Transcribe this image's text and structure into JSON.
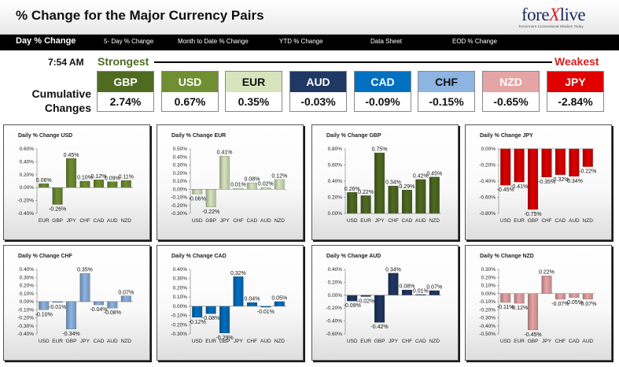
{
  "header": {
    "title": "% Change for the Major Currency Pairs",
    "logo_main": "fore",
    "logo_x": "X",
    "logo_end": "live",
    "logo_tagline": "Tomorrow's Conventional Wisdom Today"
  },
  "nav": [
    {
      "label": "Day % Change"
    },
    {
      "label": "5- Day % Change"
    },
    {
      "label": "Month to Date % Change"
    },
    {
      "label": "YTD % Change"
    },
    {
      "label": "Data Sheet"
    },
    {
      "label": "EOD % Change"
    }
  ],
  "summary": {
    "time": "7:54 AM",
    "strongest": "Strongest",
    "weakest": "Weakest",
    "cumulative_label": "Cumulative Changes",
    "currencies": [
      {
        "code": "GBP",
        "value": "2.74%",
        "color": "#4f6b22"
      },
      {
        "code": "USD",
        "value": "0.67%",
        "color": "#6f8f32"
      },
      {
        "code": "EUR",
        "value": "0.35%",
        "color": "#d7e4bd",
        "text_color": "#111111"
      },
      {
        "code": "AUD",
        "value": "-0.03%",
        "color": "#1f3864"
      },
      {
        "code": "CAD",
        "value": "-0.09%",
        "color": "#0070c0"
      },
      {
        "code": "CHF",
        "value": "-0.15%",
        "color": "#8db4e2",
        "text_color": "#111111"
      },
      {
        "code": "NZD",
        "value": "-0.65%",
        "color": "#e6a5a5"
      },
      {
        "code": "JPY",
        "value": "-2.84%",
        "color": "#e00000"
      }
    ]
  },
  "chart_data": [
    {
      "type": "bar",
      "title": "Daily % Change USD",
      "color": "#6f8f32",
      "categories": [
        "EUR",
        "GBP",
        "JPY",
        "CHF",
        "CAD",
        "AUD",
        "NZD"
      ],
      "values": [
        0.06,
        -0.26,
        0.45,
        0.1,
        0.12,
        0.09,
        0.11
      ],
      "labels": [
        "0.06%",
        "-0.26%",
        "0.45%",
        "0.10%",
        "0.12%",
        "0.09%",
        "0.11%"
      ],
      "ylim": [
        -0.4,
        0.6
      ],
      "ticks": [
        0.6,
        0.4,
        0.2,
        0.0,
        -0.2,
        -0.4
      ],
      "tick_labels": [
        "0.60%",
        "0.40%",
        "0.20%",
        "0.00%",
        "-0.20%",
        "-0.40%"
      ]
    },
    {
      "type": "bar",
      "title": "Daily % Change EUR",
      "color": "#d7e4bd",
      "categories": [
        "USD",
        "GBP",
        "JPY",
        "CHF",
        "CAD",
        "AUD",
        "NZD"
      ],
      "values": [
        -0.06,
        -0.22,
        0.41,
        0.01,
        0.08,
        0.02,
        0.12
      ],
      "labels": [
        "-0.06%",
        "-0.22%",
        "0.41%",
        "0.01%",
        "0.08%",
        "0.02%",
        "0.12%"
      ],
      "ylim": [
        -0.3,
        0.5
      ],
      "ticks": [
        0.5,
        0.4,
        0.3,
        0.2,
        0.1,
        0.0,
        -0.1,
        -0.2,
        -0.3
      ],
      "tick_labels": [
        "0.50%",
        "0.40%",
        "0.30%",
        "0.20%",
        "0.10%",
        "0.00%",
        "-0.10%",
        "-0.20%",
        "-0.30%"
      ]
    },
    {
      "type": "bar",
      "title": "Daily % Change GBP",
      "color": "#4f6b22",
      "categories": [
        "USD",
        "EUR",
        "JPY",
        "CHF",
        "CAD",
        "AUD",
        "NZD"
      ],
      "values": [
        0.26,
        0.22,
        0.75,
        0.34,
        0.29,
        0.42,
        0.45
      ],
      "labels": [
        "0.26%",
        "0.22%",
        "0.75%",
        "0.34%",
        "0.29%",
        "0.42%",
        "0.45%"
      ],
      "ylim": [
        0,
        0.8
      ],
      "ticks": [
        0.8,
        0.6,
        0.4,
        0.2,
        0.0
      ],
      "tick_labels": [
        "0.80%",
        "0.60%",
        "0.40%",
        "0.20%",
        "0.00%"
      ]
    },
    {
      "type": "bar",
      "title": "Daily % Change JPY",
      "color": "#e00000",
      "categories": [
        "USD",
        "EUR",
        "GBP",
        "CHF",
        "CAD",
        "AUD",
        "NZD"
      ],
      "values": [
        -0.45,
        -0.41,
        -0.75,
        -0.35,
        -0.32,
        -0.34,
        -0.22
      ],
      "labels": [
        "-0.45%",
        "-0.41%",
        "-0.75%",
        "-0.35%",
        "-0.32%",
        "-0.34%",
        "-0.22%"
      ],
      "ylim": [
        -0.8,
        0
      ],
      "ticks": [
        0.0,
        -0.2,
        -0.4,
        -0.6,
        -0.8
      ],
      "tick_labels": [
        "0.00%",
        "-0.20%",
        "-0.40%",
        "-0.60%",
        "-0.80%"
      ]
    },
    {
      "type": "bar",
      "title": "Daily % Change CHF",
      "color": "#8db4e2",
      "categories": [
        "USD",
        "EUR",
        "GBP",
        "JPY",
        "CAD",
        "AUD",
        "NZD"
      ],
      "values": [
        -0.1,
        -0.01,
        -0.34,
        0.35,
        -0.04,
        -0.08,
        0.07
      ],
      "labels": [
        "-0.10%",
        "-0.01%",
        "-0.34%",
        "0.35%",
        "-0.04%",
        "-0.08%",
        "0.07%"
      ],
      "ylim": [
        -0.4,
        0.4
      ],
      "ticks": [
        0.4,
        0.3,
        0.2,
        0.1,
        0.0,
        -0.1,
        -0.2,
        -0.3,
        -0.4
      ],
      "tick_labels": [
        "0.40%",
        "0.30%",
        "0.20%",
        "0.10%",
        "0.00%",
        "-0.10%",
        "-0.20%",
        "-0.30%",
        "-0.40%"
      ]
    },
    {
      "type": "bar",
      "title": "Daily % Change CAD",
      "color": "#0070c0",
      "categories": [
        "USD",
        "EUR",
        "GBP",
        "JPY",
        "CHF",
        "AUD",
        "NZD"
      ],
      "values": [
        -0.12,
        -0.08,
        -0.29,
        0.32,
        0.04,
        -0.01,
        0.05
      ],
      "labels": [
        "-0.12%",
        "-0.08%",
        "-0.29%",
        "0.32%",
        "0.04%",
        "-0.01%",
        "0.05%"
      ],
      "ylim": [
        -0.3,
        0.4
      ],
      "ticks": [
        0.4,
        0.3,
        0.2,
        0.1,
        0.0,
        -0.1,
        -0.2,
        -0.3
      ],
      "tick_labels": [
        "0.40%",
        "0.30%",
        "0.20%",
        "0.10%",
        "0.00%",
        "-0.10%",
        "-0.20%",
        "-0.30%"
      ]
    },
    {
      "type": "bar",
      "title": "Daily % Change AUD",
      "color": "#1f3864",
      "categories": [
        "USD",
        "EUR",
        "GBP",
        "JPY",
        "CHF",
        "CAD",
        "NZD"
      ],
      "values": [
        -0.09,
        -0.02,
        -0.42,
        0.34,
        0.08,
        0.01,
        0.07
      ],
      "labels": [
        "-0.09%",
        "-0.02%",
        "-0.42%",
        "0.34%",
        "0.08%",
        "0.01%",
        "0.07%"
      ],
      "ylim": [
        -0.6,
        0.4
      ],
      "ticks": [
        0.4,
        0.2,
        0.0,
        -0.2,
        -0.4,
        -0.6
      ],
      "tick_labels": [
        "0.40%",
        "0.20%",
        "0.00%",
        "-0.20%",
        "-0.40%",
        "-0.60%"
      ]
    },
    {
      "type": "bar",
      "title": "Daily % Change NZD",
      "color": "#e6a5a5",
      "categories": [
        "USD",
        "EUR",
        "GBP",
        "JPY",
        "CHF",
        "CAD",
        "AUD"
      ],
      "values": [
        -0.11,
        -0.12,
        -0.45,
        0.22,
        -0.07,
        -0.05,
        -0.07
      ],
      "labels": [
        "-0.11%",
        "-0.12%",
        "-0.45%",
        "0.22%",
        "-0.07%",
        "-0.05%",
        "-0.07%"
      ],
      "ylim": [
        -0.5,
        0.3
      ],
      "ticks": [
        0.3,
        0.2,
        0.1,
        0.0,
        -0.1,
        -0.2,
        -0.3,
        -0.4,
        -0.5
      ],
      "tick_labels": [
        "0.30%",
        "0.20%",
        "0.10%",
        "0.00%",
        "-0.10%",
        "-0.20%",
        "-0.30%",
        "-0.40%",
        "-0.50%"
      ]
    }
  ]
}
